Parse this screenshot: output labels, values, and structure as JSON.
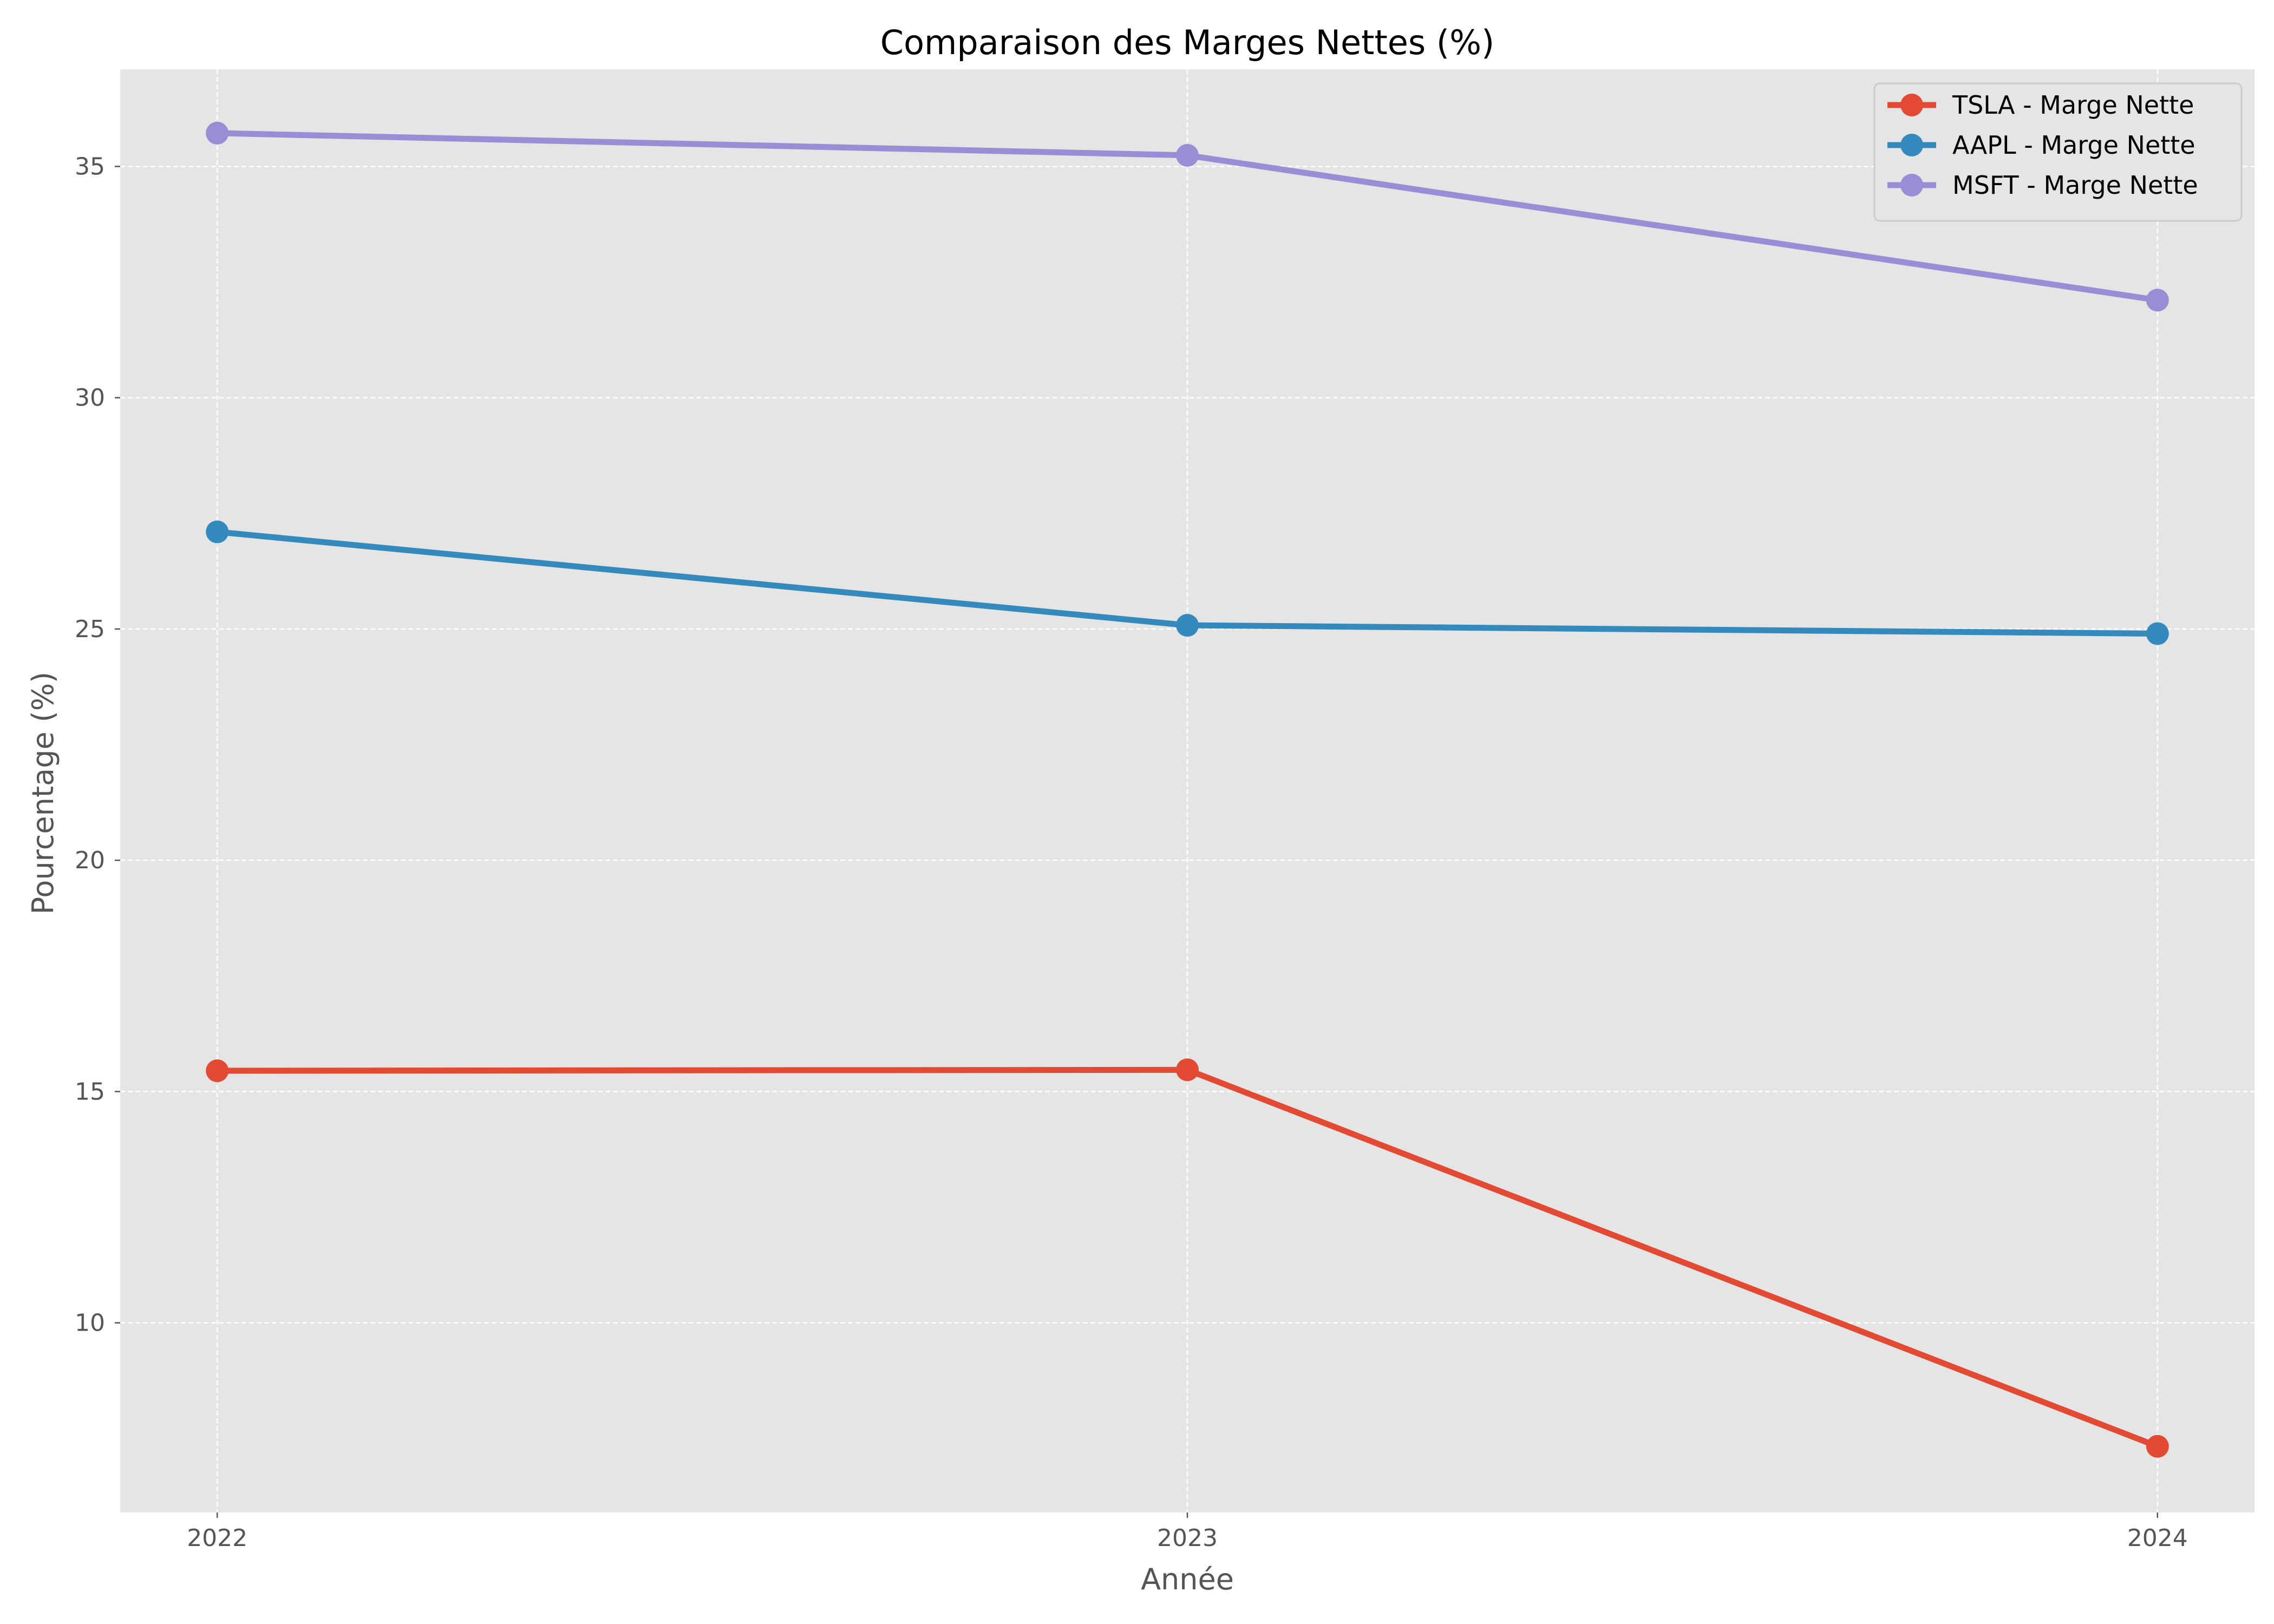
{
  "chart_data": {
    "type": "line",
    "title": "Comparaison des Marges Nettes (%)",
    "xlabel": "Année",
    "ylabel": "Pourcentage (%)",
    "categories": [
      "2022",
      "2023",
      "2024"
    ],
    "x_range": [
      2021.9,
      2024.1
    ],
    "ylim": [
      5.9,
      37.1
    ],
    "y_ticks": [
      10,
      15,
      20,
      25,
      30,
      35
    ],
    "grid": true,
    "grid_style": "dashed",
    "background": "#e5e5e5",
    "legend_position": "top-right",
    "series": [
      {
        "name": "TSLA - Marge Nette",
        "color": "#e24a33",
        "values": [
          15.45,
          15.47,
          7.33
        ]
      },
      {
        "name": "AAPL - Marge Nette",
        "color": "#348abd",
        "values": [
          27.1,
          25.08,
          24.9
        ]
      },
      {
        "name": "MSFT - Marge Nette",
        "color": "#988ed5",
        "values": [
          35.72,
          35.24,
          32.11
        ]
      }
    ]
  }
}
